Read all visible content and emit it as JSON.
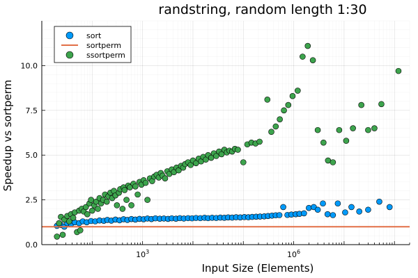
{
  "chart_data": {
    "type": "scatter",
    "title": "randstring, random length 1:30",
    "xlabel": "Input Size (Elements)",
    "ylabel": "Speedup vs sortperm",
    "x_scale": "log10",
    "xlim": [
      10,
      200000000.0
    ],
    "ylim": [
      0,
      12.5
    ],
    "x_ticks": [
      {
        "value": 1000,
        "label": "10",
        "exp": "3"
      },
      {
        "value": 1000000,
        "label": "10",
        "exp": "6"
      }
    ],
    "y_ticks": [
      {
        "value": 0,
        "label": "0.0"
      },
      {
        "value": 2.5,
        "label": "2.5"
      },
      {
        "value": 5,
        "label": "5.0"
      },
      {
        "value": 7.5,
        "label": "7.5"
      },
      {
        "value": 10,
        "label": "10.0"
      }
    ],
    "grid": true,
    "minor_grid": true,
    "legend_position": "top-left",
    "colors": {
      "sort": "#009af9",
      "sortperm": "#e26f46",
      "ssortperm": "#3da44d"
    },
    "series": [
      {
        "name": "sort",
        "kind": "scatter",
        "color": "#009af9",
        "points": [
          [
            20,
            1.05
          ],
          [
            24,
            1.1
          ],
          [
            28,
            1.0
          ],
          [
            32,
            1.2
          ],
          [
            38,
            1.15
          ],
          [
            45,
            1.25
          ],
          [
            55,
            1.2
          ],
          [
            65,
            1.3
          ],
          [
            78,
            1.25
          ],
          [
            95,
            1.32
          ],
          [
            115,
            1.3
          ],
          [
            140,
            1.35
          ],
          [
            170,
            1.33
          ],
          [
            200,
            1.38
          ],
          [
            240,
            1.34
          ],
          [
            290,
            1.4
          ],
          [
            350,
            1.36
          ],
          [
            420,
            1.42
          ],
          [
            500,
            1.38
          ],
          [
            600,
            1.43
          ],
          [
            720,
            1.4
          ],
          [
            870,
            1.44
          ],
          [
            1050,
            1.42
          ],
          [
            1250,
            1.46
          ],
          [
            1500,
            1.43
          ],
          [
            1800,
            1.47
          ],
          [
            2200,
            1.45
          ],
          [
            2650,
            1.46
          ],
          [
            3200,
            1.44
          ],
          [
            3800,
            1.47
          ],
          [
            4600,
            1.45
          ],
          [
            5500,
            1.48
          ],
          [
            6600,
            1.46
          ],
          [
            8000,
            1.48
          ],
          [
            9600,
            1.47
          ],
          [
            11500,
            1.49
          ],
          [
            14000,
            1.48
          ],
          [
            17000,
            1.5
          ],
          [
            20000,
            1.48
          ],
          [
            24000,
            1.5
          ],
          [
            29000,
            1.49
          ],
          [
            35000,
            1.51
          ],
          [
            42000,
            1.5
          ],
          [
            50000,
            1.52
          ],
          [
            60000,
            1.51
          ],
          [
            72000,
            1.53
          ],
          [
            87000,
            1.52
          ],
          [
            105000,
            1.54
          ],
          [
            126000,
            1.53
          ],
          [
            150000,
            1.55
          ],
          [
            180000,
            1.56
          ],
          [
            215000,
            1.57
          ],
          [
            260000,
            1.58
          ],
          [
            310000,
            1.6
          ],
          [
            370000,
            1.62
          ],
          [
            440000,
            1.64
          ],
          [
            520000,
            1.65
          ],
          [
            620000,
            2.1
          ],
          [
            750000,
            1.66
          ],
          [
            900000,
            1.68
          ],
          [
            1100000,
            1.7
          ],
          [
            1300000,
            1.72
          ],
          [
            1600000,
            1.75
          ],
          [
            2000000,
            2.05
          ],
          [
            2500000,
            2.1
          ],
          [
            3000000,
            1.95
          ],
          [
            3800000,
            2.3
          ],
          [
            4700000,
            1.7
          ],
          [
            6000000,
            1.65
          ],
          [
            7500000,
            2.3
          ],
          [
            10500000,
            1.8
          ],
          [
            14000000,
            2.1
          ],
          [
            20000000,
            1.85
          ],
          [
            30000000,
            1.95
          ],
          [
            50000000,
            2.4
          ],
          [
            80000000,
            2.1
          ]
        ]
      },
      {
        "name": "sortperm",
        "kind": "line",
        "color": "#e26f46",
        "points": [
          [
            10,
            1.0
          ],
          [
            200000000.0,
            1.0
          ]
        ]
      },
      {
        "name": "ssortperm",
        "kind": "scatter",
        "color": "#3da44d",
        "points": [
          [
            20,
            0.45
          ],
          [
            22,
            1.2
          ],
          [
            24,
            1.55
          ],
          [
            26,
            0.55
          ],
          [
            28,
            1.4
          ],
          [
            32,
            1.6
          ],
          [
            35,
            1.3
          ],
          [
            38,
            1.7
          ],
          [
            42,
            1.5
          ],
          [
            45,
            1.8
          ],
          [
            50,
            0.7
          ],
          [
            55,
            1.9
          ],
          [
            58,
            0.8
          ],
          [
            62,
            2.0
          ],
          [
            68,
            1.85
          ],
          [
            75,
            2.1
          ],
          [
            80,
            1.7
          ],
          [
            88,
            2.3
          ],
          [
            95,
            2.5
          ],
          [
            100,
            1.9
          ],
          [
            110,
            2.2
          ],
          [
            120,
            2.4
          ],
          [
            130,
            2.0
          ],
          [
            140,
            2.6
          ],
          [
            150,
            2.3
          ],
          [
            165,
            2.5
          ],
          [
            180,
            2.8
          ],
          [
            195,
            2.4
          ],
          [
            210,
            2.7
          ],
          [
            230,
            2.9
          ],
          [
            250,
            2.6
          ],
          [
            270,
            3.0
          ],
          [
            290,
            2.75
          ],
          [
            310,
            2.2
          ],
          [
            340,
            2.9
          ],
          [
            360,
            3.1
          ],
          [
            400,
            2.0
          ],
          [
            420,
            3.2
          ],
          [
            440,
            3.05
          ],
          [
            480,
            2.5
          ],
          [
            520,
            3.3
          ],
          [
            560,
            3.2
          ],
          [
            600,
            2.2
          ],
          [
            660,
            3.4
          ],
          [
            720,
            3.25
          ],
          [
            800,
            2.8
          ],
          [
            870,
            3.5
          ],
          [
            950,
            3.35
          ],
          [
            1050,
            3.6
          ],
          [
            1150,
            3.45
          ],
          [
            1250,
            2.5
          ],
          [
            1400,
            3.7
          ],
          [
            1550,
            3.55
          ],
          [
            1700,
            3.8
          ],
          [
            1900,
            3.9
          ],
          [
            2100,
            3.75
          ],
          [
            2300,
            4.0
          ],
          [
            2500,
            3.85
          ],
          [
            2800,
            3.7
          ],
          [
            3100,
            4.1
          ],
          [
            3400,
            3.95
          ],
          [
            3800,
            4.2
          ],
          [
            4200,
            4.05
          ],
          [
            4700,
            4.3
          ],
          [
            5200,
            4.15
          ],
          [
            5800,
            4.4
          ],
          [
            6400,
            4.3
          ],
          [
            7000,
            4.5
          ],
          [
            8000,
            4.6
          ],
          [
            9000,
            4.45
          ],
          [
            10000,
            4.7
          ],
          [
            11500,
            4.55
          ],
          [
            13000,
            4.8
          ],
          [
            14500,
            4.65
          ],
          [
            16000,
            4.9
          ],
          [
            18000,
            4.75
          ],
          [
            20000,
            5.0
          ],
          [
            23000,
            4.85
          ],
          [
            26000,
            5.1
          ],
          [
            29000,
            4.95
          ],
          [
            33000,
            5.2
          ],
          [
            37000,
            5.05
          ],
          [
            42000,
            5.3
          ],
          [
            47000,
            5.15
          ],
          [
            53000,
            5.25
          ],
          [
            60000,
            5.2
          ],
          [
            68000,
            5.35
          ],
          [
            78000,
            5.3
          ],
          [
            100000,
            4.6
          ],
          [
            120000,
            5.6
          ],
          [
            145000,
            5.7
          ],
          [
            175000,
            5.65
          ],
          [
            210000,
            5.75
          ],
          [
            300000,
            8.1
          ],
          [
            360000,
            6.3
          ],
          [
            440000,
            6.6
          ],
          [
            530000,
            7.0
          ],
          [
            640000,
            7.5
          ],
          [
            780000,
            7.8
          ],
          [
            950000,
            8.3
          ],
          [
            1200000,
            8.6
          ],
          [
            1500000,
            10.5
          ],
          [
            1900000,
            11.1
          ],
          [
            2400000,
            10.3
          ],
          [
            3000000,
            6.4
          ],
          [
            3900000,
            5.7
          ],
          [
            4800000,
            4.7
          ],
          [
            6000000,
            4.6
          ],
          [
            8000000,
            6.4
          ],
          [
            11000000,
            5.8
          ],
          [
            15000000,
            6.5
          ],
          [
            22000000,
            7.8
          ],
          [
            30000000,
            6.4
          ],
          [
            40000000,
            6.5
          ],
          [
            55000000,
            7.85
          ],
          [
            120000000,
            9.7
          ]
        ]
      }
    ]
  }
}
